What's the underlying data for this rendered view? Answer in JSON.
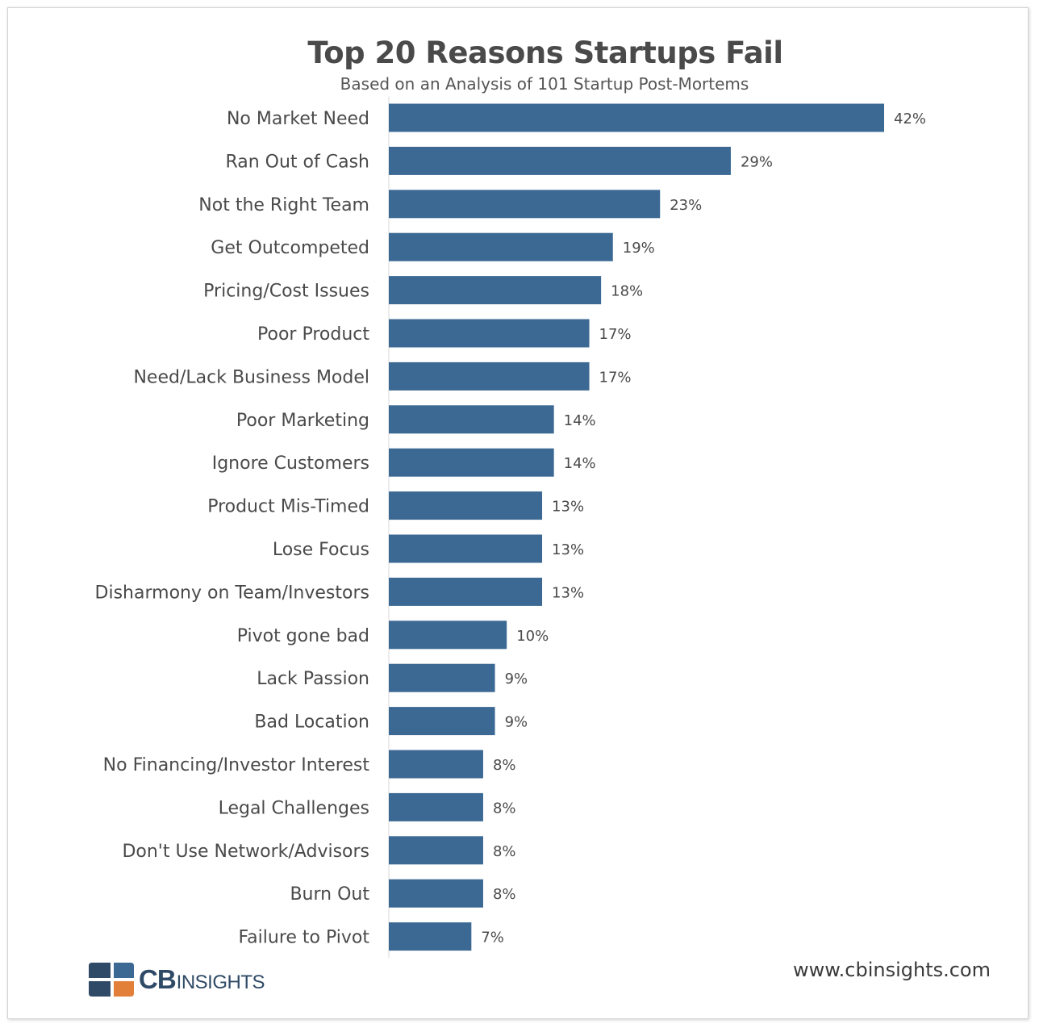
{
  "chart_data": {
    "type": "bar",
    "orientation": "horizontal",
    "title": "Top 20 Reasons Startups Fail",
    "subtitle": "Based on an Analysis of 101 Startup Post-Mortems",
    "categories": [
      "No Market Need",
      "Ran Out of Cash",
      "Not the Right Team",
      "Get Outcompeted",
      "Pricing/Cost Issues",
      "Poor Product",
      "Need/Lack Business Model",
      "Poor Marketing",
      "Ignore Customers",
      "Product Mis-Timed",
      "Lose Focus",
      "Disharmony on Team/Investors",
      "Pivot gone bad",
      "Lack Passion",
      "Bad Location",
      "No Financing/Investor Interest",
      "Legal Challenges",
      "Don't Use Network/Advisors",
      "Burn Out",
      "Failure to Pivot"
    ],
    "values": [
      42,
      29,
      23,
      19,
      18,
      17,
      17,
      14,
      14,
      13,
      13,
      13,
      10,
      9,
      9,
      8,
      8,
      8,
      8,
      7
    ],
    "value_labels": [
      "42%",
      "29%",
      "23%",
      "19%",
      "18%",
      "17%",
      "17%",
      "14%",
      "14%",
      "13%",
      "13%",
      "13%",
      "10%",
      "9%",
      "9%",
      "8%",
      "8%",
      "8%",
      "8%",
      "7%"
    ],
    "xlabel": "",
    "ylabel": "",
    "xlim": [
      0,
      42
    ],
    "bar_color": "#3c6994",
    "grid": false
  },
  "branding": {
    "logo_cb": "CB",
    "logo_insights": "INSIGHTS",
    "website": "www.cbinsights.com",
    "logo_colors": {
      "dark": "#2f4a66",
      "blue": "#3c6994",
      "orange": "#e2803a"
    }
  }
}
